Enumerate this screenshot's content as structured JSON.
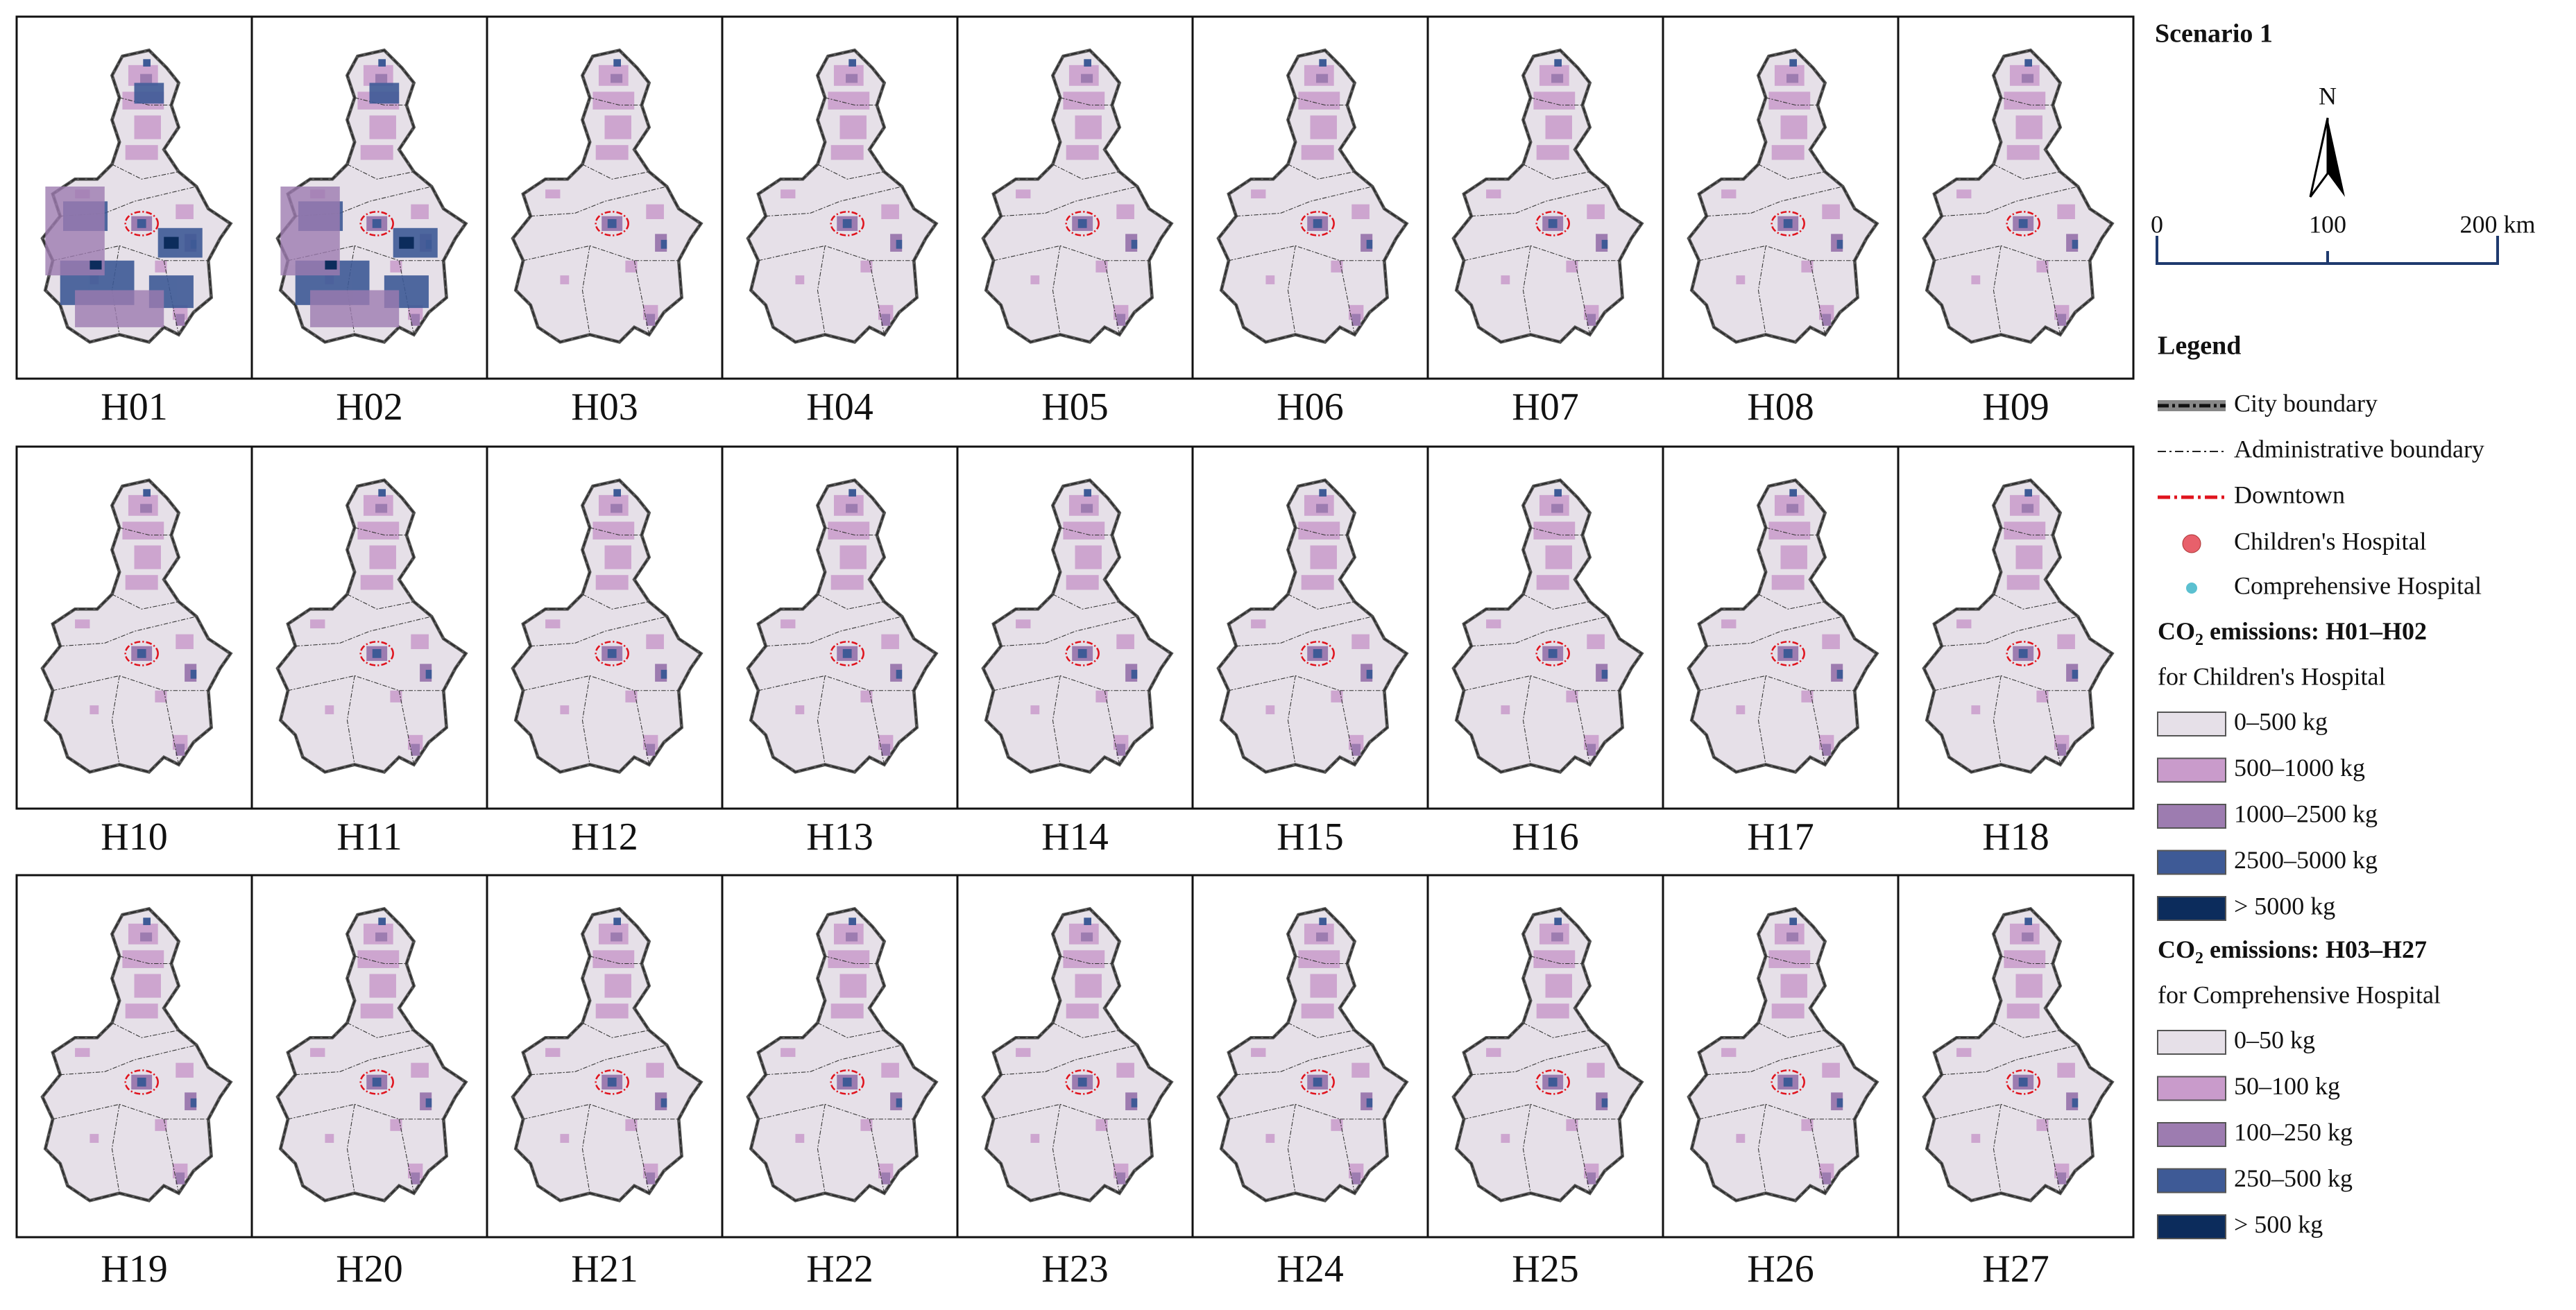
{
  "title": "Scenario 1",
  "panels": [
    "H01",
    "H02",
    "H03",
    "H04",
    "H05",
    "H06",
    "H07",
    "H08",
    "H09",
    "H10",
    "H11",
    "H12",
    "H13",
    "H14",
    "H15",
    "H16",
    "H17",
    "H18",
    "H19",
    "H20",
    "H21",
    "H22",
    "H23",
    "H24",
    "H25",
    "H26",
    "H27"
  ],
  "north_label": "N",
  "scale_bar": {
    "labels": [
      "0",
      "100",
      "200 km"
    ]
  },
  "legend": {
    "title": "Legend",
    "items": [
      {
        "label": "City boundary",
        "symbol": "city"
      },
      {
        "label": "Administrative boundary",
        "symbol": "admin"
      },
      {
        "label": "Downtown",
        "symbol": "downtown"
      },
      {
        "label": "Children's Hospital",
        "symbol": "children"
      },
      {
        "label": "Comprehensive Hospital",
        "symbol": "comprehensive"
      }
    ],
    "groups": [
      {
        "title_a": "CO",
        "title_sub": "2",
        "title_b": " emissions: H01–H02",
        "subtitle": "for Children's Hospital",
        "classes": [
          {
            "label": "0–500 kg",
            "color": "#e6e0e8"
          },
          {
            "label": "500–1000 kg",
            "color": "#c99bcb"
          },
          {
            "label": "1000–2500 kg",
            "color": "#9d7cb0"
          },
          {
            "label": "2500–5000 kg",
            "color": "#3e5a96"
          },
          {
            "label": "> 5000 kg",
            "color": "#0c2c5c"
          }
        ]
      },
      {
        "title_a": "CO",
        "title_sub": "2",
        "title_b": " emissions: H03–H27",
        "subtitle": "for Comprehensive Hospital",
        "classes": [
          {
            "label": "0–50 kg",
            "color": "#e6e0e8"
          },
          {
            "label": "50–100 kg",
            "color": "#c99bcb"
          },
          {
            "label": "100–250 kg",
            "color": "#9d7cb0"
          },
          {
            "label": "250–500 kg",
            "color": "#3e5a96"
          },
          {
            "label": "> 500 kg",
            "color": "#0c2c5c"
          }
        ]
      }
    ]
  }
}
